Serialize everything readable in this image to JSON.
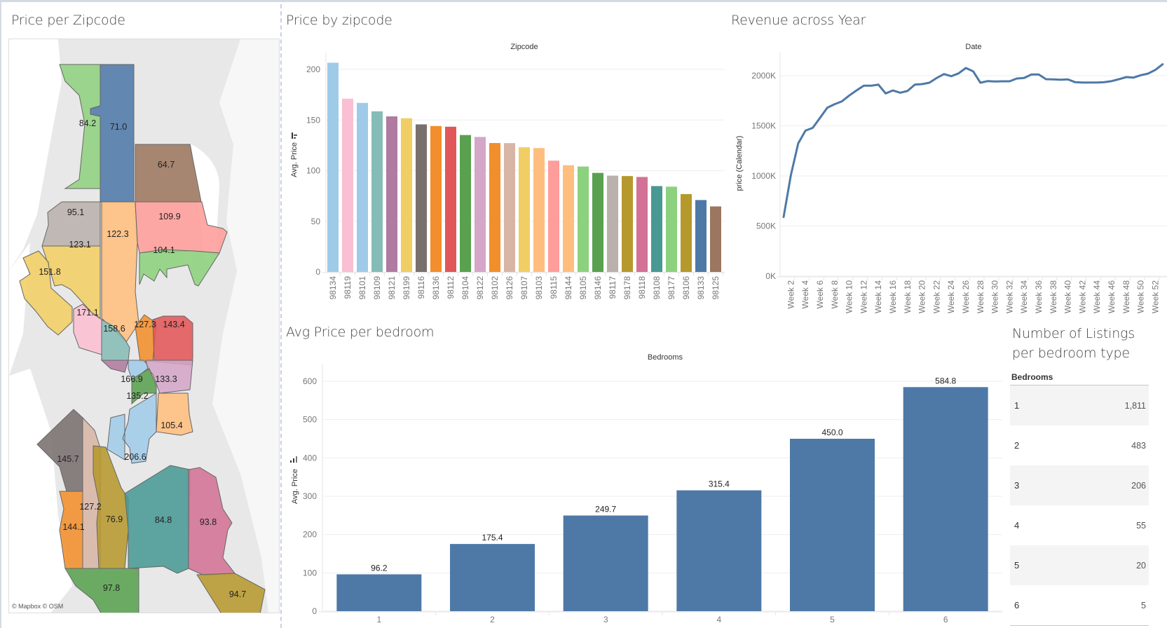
{
  "panels": {
    "map_title": "Price per Zipcode",
    "zip_bar_title": "Price by zipcode",
    "line_title": "Revenue across Year",
    "bedroom_bar_title": "Avg Price per bedroom",
    "table_title_line1": "Number of Listings",
    "table_title_line2": "per bedroom type"
  },
  "map": {
    "attribution": "© Mapbox © OSM",
    "regions": [
      {
        "zip": "98177",
        "value": "84.2",
        "color": "#8fd07e"
      },
      {
        "zip": "98133",
        "value": "71.0",
        "color": "#4e79a7"
      },
      {
        "zip": "98125",
        "value": "64.7",
        "color": "#9c7660"
      },
      {
        "zip": "98117",
        "value": "95.1",
        "color": "#bab0ac"
      },
      {
        "zip": "98103",
        "value": "122.3",
        "color": "#ffbe7d"
      },
      {
        "zip": "98115",
        "value": "109.9",
        "color": "#ff9d9a"
      },
      {
        "zip": "98107",
        "value": "123.1",
        "color": "#f1ce63"
      },
      {
        "zip": "98105",
        "value": "104.1",
        "color": "#8cd17d"
      },
      {
        "zip": "98199",
        "value": "151.8",
        "color": "#f1ce63"
      },
      {
        "zip": "98119",
        "value": "171.1",
        "color": "#fabfd2"
      },
      {
        "zip": "98109",
        "value": "158.6",
        "color": "#86bcb6"
      },
      {
        "zip": "98102",
        "value": "127.3",
        "color": "#f28e2b"
      },
      {
        "zip": "98112",
        "value": "143.4",
        "color": "#e15759"
      },
      {
        "zip": "98121",
        "value": "",
        "color": "#b07aa1"
      },
      {
        "zip": "98101",
        "value": "166.9",
        "color": "#a0cbe8"
      },
      {
        "zip": "98122",
        "value": "133.3",
        "color": "#d4a6c8"
      },
      {
        "zip": "98104",
        "value": "135.2",
        "color": "#59a14f"
      },
      {
        "zip": "98144",
        "value": "105.4",
        "color": "#ffbe7d"
      },
      {
        "zip": "98134",
        "value": "206.6",
        "color": "#a0cbe8"
      },
      {
        "zip": "98116",
        "value": "145.7",
        "color": "#79706e"
      },
      {
        "zip": "98136",
        "value": "144.1",
        "color": "#f28e2b"
      },
      {
        "zip": "98126",
        "value": "127.2",
        "color": "#d7b5a6"
      },
      {
        "zip": "98106",
        "value": "76.9",
        "color": "#b6992d"
      },
      {
        "zip": "98108",
        "value": "84.8",
        "color": "#499894"
      },
      {
        "zip": "98118",
        "value": "93.8",
        "color": "#d37295"
      },
      {
        "zip": "98146",
        "value": "97.8",
        "color": "#59a14f"
      },
      {
        "zip": "98178",
        "value": "94.7",
        "color": "#b6992d"
      }
    ]
  },
  "chart_data": [
    {
      "type": "bar",
      "title": "Price by zipcode",
      "xlabel": "Zipcode",
      "ylabel": "Avg. Price",
      "ylim": [
        0,
        215
      ],
      "yticks": [
        0,
        50,
        100,
        150,
        200
      ],
      "grid": true,
      "sorted": "descending",
      "categories": [
        "98134",
        "98119",
        "98101",
        "98109",
        "98121",
        "98199",
        "98116",
        "98136",
        "98112",
        "98104",
        "98122",
        "98102",
        "98126",
        "98107",
        "98103",
        "98115",
        "98144",
        "98105",
        "98146",
        "98117",
        "98178",
        "98118",
        "98108",
        "98177",
        "98106",
        "98133",
        "98125"
      ],
      "values": [
        206.6,
        171.1,
        166.9,
        158.6,
        153.6,
        151.8,
        145.7,
        144.1,
        143.4,
        135.2,
        133.3,
        127.3,
        127.2,
        123.1,
        122.3,
        109.9,
        105.4,
        104.1,
        97.8,
        95.1,
        94.7,
        93.8,
        84.8,
        84.2,
        76.9,
        71.0,
        64.7
      ],
      "colors": [
        "#a0cbe8",
        "#fabfd2",
        "#a0cbe8",
        "#86bcb6",
        "#b07aa1",
        "#f1ce63",
        "#79706e",
        "#f28e2b",
        "#e15759",
        "#59a14f",
        "#d4a6c8",
        "#f28e2b",
        "#d7b5a6",
        "#f1ce63",
        "#ffbe7d",
        "#ff9d9a",
        "#ffbe7d",
        "#8cd17d",
        "#59a14f",
        "#bab0ac",
        "#b6992d",
        "#d37295",
        "#499894",
        "#8cd17d",
        "#b6992d",
        "#4e79a7",
        "#9c7660"
      ]
    },
    {
      "type": "line",
      "title": "Revenue across Year",
      "xlabel": "Date",
      "ylabel": "price (Calendar)",
      "ylim": [
        0,
        2250000
      ],
      "yticks": [
        0,
        500000,
        1000000,
        1500000,
        2000000
      ],
      "ytick_labels": [
        "0K",
        "500K",
        "1000K",
        "1500K",
        "2000K"
      ],
      "grid": true,
      "color": "#4e79a7",
      "x": [
        "Week 1",
        "Week 2",
        "Week 3",
        "Week 4",
        "Week 5",
        "Week 6",
        "Week 7",
        "Week 8",
        "Week 9",
        "Week 10",
        "Week 11",
        "Week 12",
        "Week 13",
        "Week 14",
        "Week 15",
        "Week 16",
        "Week 17",
        "Week 18",
        "Week 19",
        "Week 20",
        "Week 21",
        "Week 22",
        "Week 23",
        "Week 24",
        "Week 25",
        "Week 26",
        "Week 27",
        "Week 28",
        "Week 29",
        "Week 30",
        "Week 31",
        "Week 32",
        "Week 33",
        "Week 34",
        "Week 35",
        "Week 36",
        "Week 37",
        "Week 38",
        "Week 39",
        "Week 40",
        "Week 41",
        "Week 42",
        "Week 43",
        "Week 44",
        "Week 45",
        "Week 46",
        "Week 47",
        "Week 48",
        "Week 49",
        "Week 50",
        "Week 51",
        "Week 52",
        "Week 53"
      ],
      "xtick_labels": [
        "Week 2",
        "Week 4",
        "Week 6",
        "Week 8",
        "Week 10",
        "Week 12",
        "Week 14",
        "Week 16",
        "Week 18",
        "Week 20",
        "Week 22",
        "Week 24",
        "Week 26",
        "Week 28",
        "Week 30",
        "Week 32",
        "Week 34",
        "Week 36",
        "Week 38",
        "Week 40",
        "Week 42",
        "Week 44",
        "Week 46",
        "Week 48",
        "Week 50",
        "Week 52"
      ],
      "values": [
        590000,
        1009000,
        1324000,
        1452000,
        1480000,
        1580000,
        1681000,
        1716000,
        1744000,
        1802000,
        1853000,
        1900000,
        1900000,
        1911000,
        1823000,
        1853000,
        1830000,
        1848000,
        1911000,
        1916000,
        1930000,
        1977000,
        2016000,
        1995000,
        2023000,
        2077000,
        2044000,
        1930000,
        1946000,
        1942000,
        1944000,
        1944000,
        1972000,
        1977000,
        2012000,
        2012000,
        1965000,
        1963000,
        1960000,
        1963000,
        1935000,
        1932000,
        1932000,
        1932000,
        1935000,
        1946000,
        1965000,
        1986000,
        1981000,
        2005000,
        2021000,
        2058000,
        2114000
      ]
    },
    {
      "type": "bar",
      "title": "Avg Price per bedroom",
      "xlabel": "Bedrooms",
      "ylabel": "Avg. Price",
      "ylim": [
        0,
        640
      ],
      "yticks": [
        0,
        100,
        200,
        300,
        400,
        500,
        600
      ],
      "grid": true,
      "color": "#4e79a7",
      "categories": [
        "1",
        "2",
        "3",
        "4",
        "5",
        "6"
      ],
      "values": [
        96.2,
        175.4,
        249.7,
        315.4,
        450.0,
        584.8
      ],
      "data_labels": [
        "96.2",
        "175.4",
        "249.7",
        "315.4",
        "450.0",
        "584.8"
      ]
    },
    {
      "type": "table",
      "title": "Number of Listings per bedroom type",
      "column_header": "Bedrooms",
      "rows": [
        {
          "bedrooms": "1",
          "count": "1,811"
        },
        {
          "bedrooms": "2",
          "count": "483"
        },
        {
          "bedrooms": "3",
          "count": "206"
        },
        {
          "bedrooms": "4",
          "count": "55"
        },
        {
          "bedrooms": "5",
          "count": "20"
        },
        {
          "bedrooms": "6",
          "count": "5"
        }
      ]
    }
  ]
}
